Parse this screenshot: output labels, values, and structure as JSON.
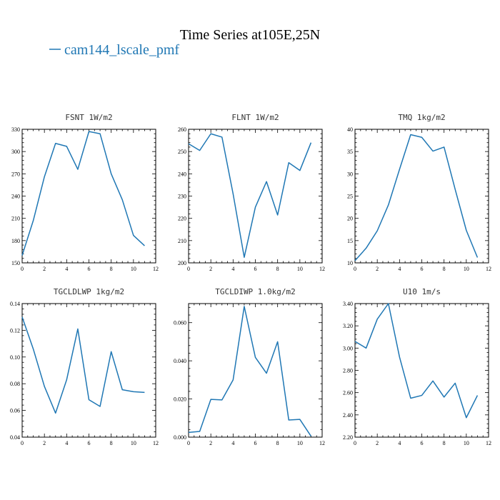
{
  "figure": {
    "title": "Time Series at105E,25N",
    "legend_label": "cam144_lscale_pmf",
    "line_color": "#1f77b4"
  },
  "chart_data": [
    {
      "type": "line",
      "title": "FSNT  1W/m2",
      "xlim": [
        0,
        12
      ],
      "ylim": [
        150,
        330
      ],
      "xticks": [
        0,
        2,
        4,
        6,
        8,
        10,
        12
      ],
      "yticks": [
        150,
        180,
        210,
        240,
        270,
        300,
        330
      ],
      "ytick_labels": [
        "150",
        "180",
        "210",
        "240",
        "270",
        "300",
        "330"
      ],
      "x": [
        0,
        1,
        2,
        3,
        4,
        5,
        6,
        7,
        8,
        9,
        10,
        11
      ],
      "series": [
        {
          "values": [
            160,
            207,
            266,
            311,
            307,
            276,
            327,
            324,
            270,
            235,
            187,
            173
          ]
        }
      ]
    },
    {
      "type": "line",
      "title": "FLNT  1W/m2",
      "xlim": [
        0,
        12
      ],
      "ylim": [
        200,
        260
      ],
      "xticks": [
        0,
        2,
        4,
        6,
        8,
        10,
        12
      ],
      "yticks": [
        200,
        210,
        220,
        230,
        240,
        250,
        260
      ],
      "ytick_labels": [
        "200",
        "210",
        "220",
        "230",
        "240",
        "250",
        "260"
      ],
      "x": [
        0,
        1,
        2,
        3,
        4,
        5,
        6,
        7,
        8,
        9,
        10,
        11
      ],
      "series": [
        {
          "values": [
            253.5,
            250.5,
            258,
            256.5,
            231,
            202.5,
            225,
            236.5,
            221.5,
            245,
            241.5,
            254
          ]
        }
      ]
    },
    {
      "type": "line",
      "title": "TMQ  1kg/m2",
      "xlim": [
        0,
        12
      ],
      "ylim": [
        10,
        40
      ],
      "xticks": [
        0,
        2,
        4,
        6,
        8,
        10,
        12
      ],
      "yticks": [
        10,
        15,
        20,
        25,
        30,
        35,
        40
      ],
      "ytick_labels": [
        "10",
        "15",
        "20",
        "25",
        "30",
        "35",
        "40"
      ],
      "x": [
        0,
        1,
        2,
        3,
        4,
        5,
        6,
        7,
        8,
        9,
        10,
        11
      ],
      "series": [
        {
          "values": [
            10.5,
            13.3,
            17.2,
            23,
            31,
            38.8,
            38.2,
            35.1,
            36,
            26.5,
            17.3,
            11.2
          ]
        }
      ]
    },
    {
      "type": "line",
      "title": "TGCLDLWP  1kg/m2",
      "xlim": [
        0,
        12
      ],
      "ylim": [
        0.04,
        0.14
      ],
      "xticks": [
        0,
        2,
        4,
        6,
        8,
        10,
        12
      ],
      "yticks": [
        0.04,
        0.06,
        0.08,
        0.1,
        0.12,
        0.14
      ],
      "ytick_labels": [
        "0.04",
        "0.06",
        "0.08",
        "0.10",
        "0.12",
        "0.14"
      ],
      "x": [
        0,
        1,
        2,
        3,
        4,
        5,
        6,
        7,
        8,
        9,
        10,
        11
      ],
      "series": [
        {
          "values": [
            0.13,
            0.106,
            0.078,
            0.058,
            0.083,
            0.121,
            0.068,
            0.063,
            0.104,
            0.0755,
            0.074,
            0.0735
          ]
        }
      ]
    },
    {
      "type": "line",
      "title": "TGCLDIWP  1.0kg/m2",
      "xlim": [
        0,
        12
      ],
      "ylim": [
        0,
        0.07
      ],
      "xticks": [
        0,
        2,
        4,
        6,
        8,
        10,
        12
      ],
      "yticks": [
        0,
        0.02,
        0.04,
        0.06
      ],
      "ytick_labels": [
        "0.000",
        "0.020",
        "0.040",
        "0.060"
      ],
      "x": [
        0,
        1,
        2,
        3,
        4,
        5,
        6,
        7,
        8,
        9,
        10,
        11
      ],
      "series": [
        {
          "values": [
            0.0025,
            0.003,
            0.0198,
            0.0195,
            0.03,
            0.0685,
            0.0418,
            0.0335,
            0.05,
            0.009,
            0.0093,
            0.0005
          ]
        }
      ]
    },
    {
      "type": "line",
      "title": "U10  1m/s",
      "xlim": [
        0,
        12
      ],
      "ylim": [
        2.2,
        3.4
      ],
      "xticks": [
        0,
        2,
        4,
        6,
        8,
        10,
        12
      ],
      "yticks": [
        2.2,
        2.4,
        2.6,
        2.8,
        3.0,
        3.2,
        3.4
      ],
      "ytick_labels": [
        "2.20",
        "2.40",
        "2.60",
        "2.80",
        "3.00",
        "3.20",
        "3.40"
      ],
      "x": [
        0,
        1,
        2,
        3,
        4,
        5,
        6,
        7,
        8,
        9,
        10,
        11
      ],
      "series": [
        {
          "values": [
            3.06,
            3.0,
            3.26,
            3.4,
            2.92,
            2.55,
            2.575,
            2.705,
            2.56,
            2.685,
            2.375,
            2.575
          ]
        }
      ]
    }
  ]
}
